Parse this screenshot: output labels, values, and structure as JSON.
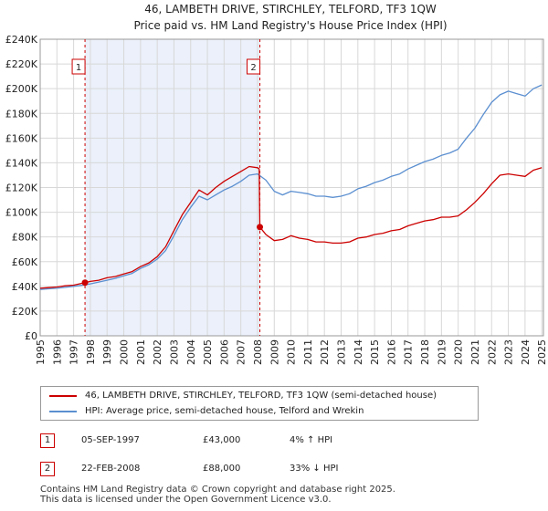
{
  "chart_data": {
    "type": "line",
    "title": "46, LAMBETH DRIVE, STIRCHLEY, TELFORD, TF3 1QW",
    "subtitle": "Price paid vs. HM Land Registry's House Price Index (HPI)",
    "xlim": [
      1995.0,
      2025.1
    ],
    "ylim": [
      0,
      240000
    ],
    "y_ticks": [
      0,
      20000,
      40000,
      60000,
      80000,
      100000,
      120000,
      140000,
      160000,
      180000,
      200000,
      220000,
      240000
    ],
    "y_tick_labels": [
      "£0",
      "£20K",
      "£40K",
      "£60K",
      "£80K",
      "£100K",
      "£120K",
      "£140K",
      "£160K",
      "£180K",
      "£200K",
      "£220K",
      "£240K"
    ],
    "x_ticks": [
      1995,
      1996,
      1997,
      1998,
      1999,
      2000,
      2001,
      2002,
      2003,
      2004,
      2005,
      2006,
      2007,
      2008,
      2009,
      2010,
      2011,
      2012,
      2013,
      2014,
      2015,
      2016,
      2017,
      2018,
      2019,
      2020,
      2021,
      2022,
      2023,
      2024,
      2025
    ],
    "x_tick_labels": [
      "1995",
      "1996",
      "1997",
      "1998",
      "1999",
      "2000",
      "2001",
      "2002",
      "2003",
      "2004",
      "2005",
      "2006",
      "2007",
      "2008",
      "2009",
      "2010",
      "2011",
      "2012",
      "2013",
      "2014",
      "2015",
      "2016",
      "2017",
      "2018",
      "2019",
      "2020",
      "2021",
      "2022",
      "2023",
      "2024",
      "2025"
    ],
    "grid": true,
    "shaded_period": [
      1997.68,
      2008.14
    ],
    "series": [
      {
        "name": "46, LAMBETH DRIVE, STIRCHLEY, TELFORD, TF3 1QW (semi-detached house)",
        "color": "#cc0000",
        "x": [
          1995.0,
          1995.5,
          1996.0,
          1996.5,
          1997.0,
          1997.68,
          1998.0,
          1998.5,
          1999.0,
          1999.5,
          2000.0,
          2000.5,
          2001.0,
          2001.5,
          2002.0,
          2002.5,
          2003.0,
          2003.5,
          2004.0,
          2004.5,
          2005.0,
          2005.5,
          2006.0,
          2006.5,
          2007.0,
          2007.5,
          2008.0,
          2008.1,
          2008.14,
          2008.5,
          2009.0,
          2009.5,
          2010.0,
          2010.5,
          2011.0,
          2011.5,
          2012.0,
          2012.5,
          2013.0,
          2013.5,
          2014.0,
          2014.5,
          2015.0,
          2015.5,
          2016.0,
          2016.5,
          2017.0,
          2017.5,
          2018.0,
          2018.5,
          2019.0,
          2019.5,
          2020.0,
          2020.5,
          2021.0,
          2021.5,
          2022.0,
          2022.5,
          2023.0,
          2023.5,
          2024.0,
          2024.5,
          2025.0
        ],
        "y": [
          38500,
          39000,
          39500,
          40500,
          41000,
          43000,
          44000,
          45000,
          47000,
          48000,
          50000,
          52000,
          56000,
          59000,
          64000,
          72000,
          85000,
          98000,
          108000,
          118000,
          114000,
          120000,
          125000,
          129000,
          133000,
          137000,
          136000,
          135000,
          88000,
          82000,
          77000,
          78000,
          81000,
          79000,
          78000,
          76000,
          76000,
          75000,
          75000,
          76000,
          79000,
          80000,
          82000,
          83000,
          85000,
          86000,
          89000,
          91000,
          93000,
          94000,
          96000,
          96000,
          97000,
          102000,
          108000,
          115000,
          123000,
          130000,
          131000,
          130000,
          129000,
          134000,
          136000
        ]
      },
      {
        "name": "HPI: Average price, semi-detached house, Telford and Wrekin",
        "color": "#5b8fd0",
        "x": [
          1995.0,
          1995.5,
          1996.0,
          1996.5,
          1997.0,
          1997.68,
          1998.0,
          1998.5,
          1999.0,
          1999.5,
          2000.0,
          2000.5,
          2001.0,
          2001.5,
          2002.0,
          2002.5,
          2003.0,
          2003.5,
          2004.0,
          2004.5,
          2005.0,
          2005.5,
          2006.0,
          2006.5,
          2007.0,
          2007.5,
          2008.0,
          2008.5,
          2009.0,
          2009.5,
          2010.0,
          2010.5,
          2011.0,
          2011.5,
          2012.0,
          2012.5,
          2013.0,
          2013.5,
          2014.0,
          2014.5,
          2015.0,
          2015.5,
          2016.0,
          2016.5,
          2017.0,
          2017.5,
          2018.0,
          2018.5,
          2019.0,
          2019.5,
          2020.0,
          2020.5,
          2021.0,
          2021.5,
          2022.0,
          2022.5,
          2023.0,
          2023.5,
          2024.0,
          2024.5,
          2025.0
        ],
        "y": [
          37500,
          38000,
          38500,
          39200,
          40000,
          41300,
          42000,
          43500,
          45000,
          46500,
          48500,
          50500,
          54500,
          57500,
          62000,
          69000,
          81000,
          94000,
          104000,
          113000,
          110000,
          114000,
          118000,
          121000,
          125000,
          130000,
          131000,
          126000,
          117000,
          114000,
          117000,
          116000,
          115000,
          113000,
          113000,
          112000,
          113000,
          115000,
          119000,
          121000,
          124000,
          126000,
          129000,
          131000,
          135000,
          138000,
          141000,
          143000,
          146000,
          148000,
          151000,
          160000,
          168000,
          179000,
          189000,
          195000,
          198000,
          196000,
          194000,
          200000,
          203000
        ]
      }
    ],
    "annotations": [
      {
        "label": "1",
        "x": 1997.68,
        "y": 43000
      },
      {
        "label": "2",
        "x": 2008.14,
        "y": 88000
      }
    ]
  },
  "legend": [
    {
      "label": "46, LAMBETH DRIVE, STIRCHLEY, TELFORD, TF3 1QW (semi-detached house)",
      "color": "#cc0000"
    },
    {
      "label": "HPI: Average price, semi-detached house, Telford and Wrekin",
      "color": "#5b8fd0"
    }
  ],
  "sales": [
    {
      "num": "1",
      "date": "05-SEP-1997",
      "price": "£43,000",
      "hpi": "4% ↑ HPI"
    },
    {
      "num": "2",
      "date": "22-FEB-2008",
      "price": "£88,000",
      "hpi": "33% ↓ HPI"
    }
  ],
  "footer": {
    "line1": "Contains HM Land Registry data © Crown copyright and database right 2025.",
    "line2": "This data is licensed under the Open Government Licence v3.0."
  }
}
